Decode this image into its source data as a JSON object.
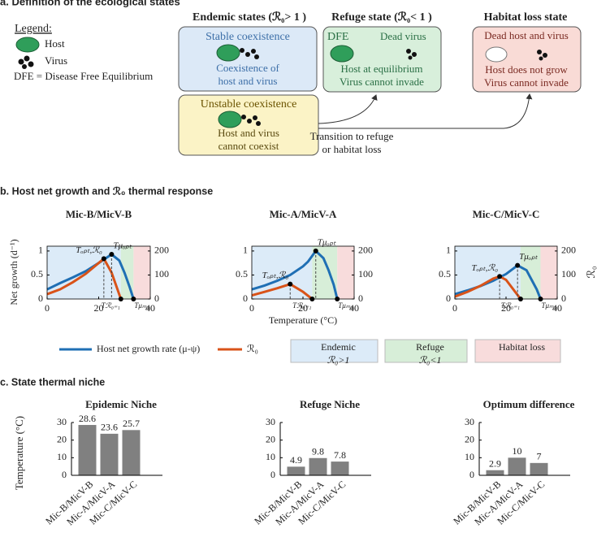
{
  "panel_a": {
    "title": "a. Definition of the ecological states",
    "legend": {
      "title": "Legend:",
      "host": "Host",
      "virus": "Virus",
      "note": "DFE = Disease Free Equilibrium"
    },
    "endemic": {
      "heading": "Endemic states (ℛ₀> 1 )",
      "stable": {
        "title": "Stable coexistence",
        "lines": [
          "Coexistence of",
          "host and virus"
        ]
      },
      "unstable": {
        "title": "Unstable coexistence",
        "lines": [
          "Host and virus",
          "cannot coexist"
        ]
      }
    },
    "refuge": {
      "heading": "Refuge state (ℛ₀< 1 )",
      "tag": "DFE",
      "dead": "Dead virus",
      "lines": [
        "Host at equilibrium",
        "Virus cannot invade"
      ]
    },
    "habitat_loss": {
      "heading": "Habitat loss state",
      "top": "Dead host and virus",
      "lines": [
        "Host does not grow",
        "Virus cannot invade"
      ]
    },
    "transition": [
      "Transition to refuge",
      "or habitat loss"
    ]
  },
  "panel_b": {
    "title": "b. Host net growth and ℛ₀ thermal response",
    "ylabel": "Net growth (d⁻¹)",
    "y2label": "ℛ₀",
    "xlabel": "Temperature (°C)",
    "legend": [
      {
        "name": "Host net growth rate (μ-ψ)",
        "color": "#1f6fb4",
        "kind": "line"
      },
      {
        "name": "ℛ₀",
        "color": "#d95319",
        "kind": "line"
      },
      {
        "name": "Endemic",
        "sub": "ℛ₀>1",
        "color": "#dcebf8",
        "kind": "box"
      },
      {
        "name": "Refuge",
        "sub": "ℛ₀<1",
        "color": "#d7eed8",
        "kind": "box"
      },
      {
        "name": "Habitat loss",
        "color": "#f8dcdc",
        "kind": "box"
      }
    ]
  },
  "panel_c": {
    "title": "c. State thermal niche"
  },
  "chart_data": [
    {
      "type": "line",
      "title": "Mic-B/MicV-B",
      "xlim": [
        0,
        40
      ],
      "xticks": [
        0,
        20,
        40
      ],
      "ylim": [
        0,
        1.1
      ],
      "yticks": [
        0,
        0.5,
        1
      ],
      "y2lim": [
        0,
        220
      ],
      "y2ticks": [
        0,
        100,
        200
      ],
      "region_edges": [
        28.6,
        33.5
      ],
      "series": [
        {
          "color": "#1f6fb4",
          "x": [
            0,
            5,
            10,
            15,
            20,
            22,
            25,
            28,
            30,
            32,
            33.5
          ],
          "values": [
            0.2,
            0.33,
            0.45,
            0.58,
            0.75,
            0.82,
            0.93,
            0.8,
            0.55,
            0.25,
            0
          ]
        },
        {
          "color": "#d95319",
          "axis": "y2",
          "x": [
            0,
            5,
            10,
            15,
            20,
            22,
            25,
            28.6
          ],
          "values": [
            20,
            40,
            70,
            105,
            150,
            168,
            110,
            0
          ]
        }
      ],
      "points": [
        {
          "x": 22,
          "y": 0.84,
          "label": "Tₒₚₜ,ℛ₀"
        },
        {
          "x": 25,
          "y": 0.93,
          "label": "Tμₒₚₜ"
        },
        {
          "x": 28.6,
          "y": 0,
          "label": "Tℛ₀₌₁"
        },
        {
          "x": 33.5,
          "y": 0,
          "label": "Tμₘₐₓ"
        }
      ]
    },
    {
      "type": "line",
      "title": "Mic-A/MicV-A",
      "xlim": [
        0,
        40
      ],
      "xticks": [
        0,
        20,
        40
      ],
      "ylim": [
        0,
        1.1
      ],
      "yticks": [
        0,
        0.5,
        1
      ],
      "y2lim": [
        0,
        220
      ],
      "y2ticks": [
        0,
        100,
        200
      ],
      "region_edges": [
        23.6,
        33.4
      ],
      "series": [
        {
          "color": "#1f6fb4",
          "x": [
            0,
            5,
            10,
            15,
            20,
            22,
            25,
            28,
            30,
            32,
            33.4
          ],
          "values": [
            0.2,
            0.28,
            0.38,
            0.5,
            0.68,
            0.78,
            1.0,
            0.85,
            0.6,
            0.3,
            0
          ]
        },
        {
          "color": "#d95319",
          "axis": "y2",
          "x": [
            0,
            5,
            10,
            15,
            20,
            23.6
          ],
          "values": [
            15,
            30,
            45,
            62,
            30,
            0
          ]
        }
      ],
      "points": [
        {
          "x": 15,
          "y": 0.31,
          "label": "Tₒₚₜ,ℛ₀"
        },
        {
          "x": 25,
          "y": 1.0,
          "label": "Tμₒₚₜ"
        },
        {
          "x": 23.6,
          "y": 0,
          "label": "Tℛ₀₌₁"
        },
        {
          "x": 33.4,
          "y": 0,
          "label": "Tμₘₐₓ"
        }
      ]
    },
    {
      "type": "line",
      "title": "Mic-C/MicV-C",
      "xlim": [
        0,
        40
      ],
      "xticks": [
        0,
        20,
        40
      ],
      "ylim": [
        0,
        1.1
      ],
      "yticks": [
        0,
        0.5,
        1
      ],
      "y2lim": [
        0,
        220
      ],
      "y2ticks": [
        0,
        100,
        200
      ],
      "region_edges": [
        25.7,
        33.5
      ],
      "series": [
        {
          "color": "#1f6fb4",
          "x": [
            0,
            5,
            10,
            15,
            20,
            22,
            24.5,
            28,
            30,
            32,
            33.5
          ],
          "values": [
            0.1,
            0.18,
            0.27,
            0.38,
            0.52,
            0.6,
            0.7,
            0.6,
            0.4,
            0.2,
            0
          ]
        },
        {
          "color": "#d95319",
          "axis": "y2",
          "x": [
            0,
            5,
            10,
            15,
            17.5,
            20,
            25.7
          ],
          "values": [
            10,
            30,
            55,
            85,
            94,
            80,
            0
          ]
        }
      ],
      "points": [
        {
          "x": 17.5,
          "y": 0.47,
          "label": "Tₒₚₜ,ℛ₀"
        },
        {
          "x": 24.5,
          "y": 0.7,
          "label": "Tμₒₚₜ"
        },
        {
          "x": 25.7,
          "y": 0,
          "label": "Tℛ₀₌₁"
        },
        {
          "x": 33.5,
          "y": 0,
          "label": "Tμₘₐₓ"
        }
      ]
    },
    {
      "type": "bar",
      "title": "Epidemic Niche",
      "ylabel": "Temperature (°C)",
      "categories": [
        "Mic-B/MicV-B",
        "Mic-A/MicV-A",
        "Mic-C/MicV-C"
      ],
      "values": [
        28.6,
        23.6,
        25.7
      ],
      "color": "#808080",
      "ylim": [
        0,
        30
      ],
      "yticks": [
        0,
        10,
        20,
        30
      ]
    },
    {
      "type": "bar",
      "title": "Refuge Niche",
      "categories": [
        "Mic-B/MicV-B",
        "Mic-A/MicV-A",
        "Mic-C/MicV-C"
      ],
      "values": [
        4.9,
        9.8,
        7.8
      ],
      "color": "#808080",
      "ylim": [
        0,
        30
      ],
      "yticks": [
        0,
        10,
        20,
        30
      ]
    },
    {
      "type": "bar",
      "title": "Optimum difference",
      "categories": [
        "Mic-B/MicV-B",
        "Mic-A/MicV-A",
        "Mic-C/MicV-C"
      ],
      "values": [
        2.9,
        10,
        7
      ],
      "color": "#808080",
      "ylim": [
        0,
        30
      ],
      "yticks": [
        0,
        10,
        20,
        30
      ]
    }
  ]
}
